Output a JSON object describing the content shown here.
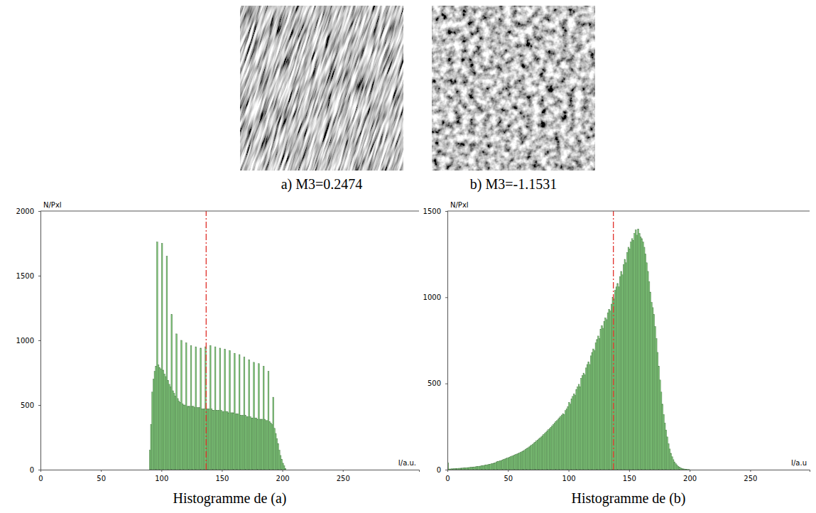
{
  "chart_data": [
    {
      "type": "histogram",
      "title": "Histogramme de (a)",
      "image_label": "a) M3=0.2474",
      "x_label": "I/a.u.",
      "y_label": "N/Pxl",
      "color": "#7cc576",
      "mean_line": 137,
      "xlim": [
        0,
        313
      ],
      "ylim": [
        0,
        2000
      ],
      "xticks": [
        0,
        50,
        100,
        150,
        200,
        250
      ],
      "yticks": [
        0,
        500,
        1000,
        1500,
        2000
      ],
      "bins": [
        90,
        91,
        92,
        93,
        94,
        95,
        96,
        97,
        98,
        99,
        100,
        101,
        102,
        103,
        104,
        105,
        106,
        107,
        108,
        109,
        110,
        111,
        112,
        113,
        114,
        115,
        116,
        117,
        118,
        119,
        120,
        121,
        122,
        123,
        124,
        125,
        126,
        127,
        128,
        129,
        130,
        131,
        132,
        133,
        134,
        135,
        136,
        137,
        138,
        139,
        140,
        141,
        142,
        143,
        144,
        145,
        146,
        147,
        148,
        149,
        150,
        151,
        152,
        153,
        154,
        155,
        156,
        157,
        158,
        159,
        160,
        161,
        162,
        163,
        164,
        165,
        166,
        167,
        168,
        169,
        170,
        171,
        172,
        173,
        174,
        175,
        176,
        177,
        178,
        179,
        180,
        181,
        182,
        183,
        184,
        185,
        186,
        187,
        188,
        189,
        190,
        191,
        192,
        193,
        194,
        195,
        196,
        197,
        198,
        199,
        200,
        201,
        202,
        203
      ],
      "values": [
        150,
        350,
        600,
        700,
        760,
        800,
        1760,
        810,
        790,
        780,
        1750,
        770,
        740,
        720,
        1650,
        690,
        660,
        640,
        1200,
        610,
        590,
        570,
        1050,
        550,
        530,
        520,
        1000,
        510,
        500,
        500,
        980,
        490,
        490,
        490,
        960,
        490,
        490,
        480,
        950,
        480,
        480,
        480,
        940,
        470,
        470,
        470,
        950,
        470,
        470,
        470,
        960,
        470,
        460,
        460,
        950,
        460,
        460,
        460,
        940,
        460,
        450,
        450,
        930,
        450,
        450,
        440,
        920,
        440,
        440,
        440,
        900,
        430,
        430,
        430,
        890,
        420,
        420,
        420,
        870,
        420,
        410,
        410,
        850,
        410,
        400,
        400,
        830,
        400,
        400,
        390,
        820,
        390,
        390,
        390,
        800,
        390,
        380,
        380,
        760,
        370,
        360,
        350,
        560,
        320,
        280,
        240,
        200,
        150,
        110,
        80,
        50,
        30,
        10
      ]
    },
    {
      "type": "histogram",
      "title": "Histogramme de (b)",
      "image_label": "b) M3=-1.1531",
      "x_label": "I/a.u",
      "y_label": "N/Pxl",
      "color": "#7cc576",
      "mean_line": 137,
      "xlim": [
        0,
        299
      ],
      "ylim": [
        0,
        1500
      ],
      "xticks": [
        0,
        50,
        100,
        150,
        200,
        250
      ],
      "yticks": [
        0,
        500,
        1000,
        1500
      ],
      "bins": [
        0,
        1,
        2,
        3,
        4,
        5,
        6,
        7,
        8,
        9,
        10,
        11,
        12,
        13,
        14,
        15,
        16,
        17,
        18,
        19,
        20,
        21,
        22,
        23,
        24,
        25,
        26,
        27,
        28,
        29,
        30,
        31,
        32,
        33,
        34,
        35,
        36,
        37,
        38,
        39,
        40,
        41,
        42,
        43,
        44,
        45,
        46,
        47,
        48,
        49,
        50,
        51,
        52,
        53,
        54,
        55,
        56,
        57,
        58,
        59,
        60,
        61,
        62,
        63,
        64,
        65,
        66,
        67,
        68,
        69,
        70,
        71,
        72,
        73,
        74,
        75,
        76,
        77,
        78,
        79,
        80,
        81,
        82,
        83,
        84,
        85,
        86,
        87,
        88,
        89,
        90,
        91,
        92,
        93,
        94,
        95,
        96,
        97,
        98,
        99,
        100,
        101,
        102,
        103,
        104,
        105,
        106,
        107,
        108,
        109,
        110,
        111,
        112,
        113,
        114,
        115,
        116,
        117,
        118,
        119,
        120,
        121,
        122,
        123,
        124,
        125,
        126,
        127,
        128,
        129,
        130,
        131,
        132,
        133,
        134,
        135,
        136,
        137,
        138,
        139,
        140,
        141,
        142,
        143,
        144,
        145,
        146,
        147,
        148,
        149,
        150,
        151,
        152,
        153,
        154,
        155,
        156,
        157,
        158,
        159,
        160,
        161,
        162,
        163,
        164,
        165,
        166,
        167,
        168,
        169,
        170,
        171,
        172,
        173,
        174,
        175,
        176,
        177,
        178,
        179,
        180,
        181,
        182,
        183,
        184,
        185,
        186,
        187,
        188,
        189,
        190,
        191,
        192,
        193,
        194,
        195,
        196,
        197,
        198,
        199,
        200
      ],
      "values": [
        40,
        4,
        4,
        5,
        5,
        6,
        6,
        7,
        7,
        8,
        8,
        9,
        9,
        10,
        10,
        11,
        12,
        12,
        13,
        14,
        15,
        15,
        16,
        17,
        18,
        19,
        20,
        21,
        22,
        24,
        25,
        26,
        28,
        29,
        31,
        32,
        34,
        36,
        38,
        40,
        45,
        47,
        49,
        51,
        53,
        56,
        59,
        62,
        65,
        67,
        70,
        73,
        76,
        79,
        82,
        85,
        88,
        91,
        94,
        97,
        100,
        104,
        108,
        112,
        117,
        122,
        127,
        132,
        137,
        142,
        148,
        154,
        160,
        166,
        172,
        178,
        184,
        190,
        197,
        204,
        211,
        218,
        225,
        232,
        239,
        246,
        254,
        262,
        270,
        278,
        285,
        293,
        301,
        309,
        317,
        325,
        320,
        343,
        352,
        365,
        390,
        380,
        410,
        425,
        440,
        430,
        465,
        480,
        495,
        480,
        530,
        545,
        560,
        550,
        590,
        610,
        625,
        610,
        660,
        680,
        700,
        690,
        735,
        755,
        775,
        760,
        815,
        835,
        820,
        860,
        880,
        870,
        910,
        930,
        920,
        960,
        1000,
        990,
        1040,
        1060,
        1080,
        1060,
        1120,
        1150,
        1130,
        1190,
        1220,
        1200,
        1260,
        1290,
        1280,
        1320,
        1340,
        1330,
        1370,
        1390,
        1360,
        1395,
        1370,
        1350,
        1340,
        1320,
        1290,
        1250,
        1200,
        1150,
        1090,
        1030,
        970,
        940,
        900,
        830,
        760,
        680,
        600,
        520,
        450,
        380,
        320,
        270,
        230,
        190,
        150,
        120,
        95,
        75,
        58,
        45,
        34,
        26,
        19,
        14,
        10,
        7,
        5,
        4,
        3,
        2,
        1,
        1
      ]
    }
  ]
}
